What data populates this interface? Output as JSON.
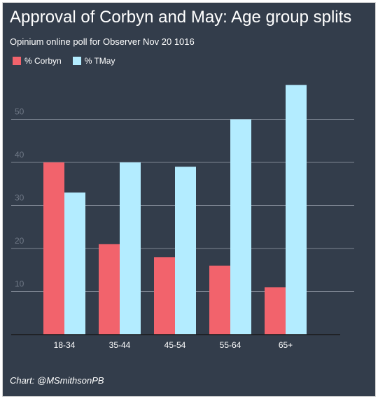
{
  "chart_data": {
    "type": "bar",
    "title": "Approval of Corbyn and May: Age group splits",
    "subtitle": "Opinium online poll for Observer Nov 20 1016",
    "categories": [
      "18-34",
      "35-44",
      "45-54",
      "55-64",
      "65+"
    ],
    "series": [
      {
        "name": "% Corbyn",
        "color": "#f2636c",
        "values": [
          40,
          21,
          18,
          16,
          11
        ]
      },
      {
        "name": "% TMay",
        "color": "#b3ecff",
        "values": [
          33,
          40,
          39,
          50,
          58
        ]
      }
    ],
    "y_ticks": [
      10,
      20,
      30,
      40,
      50
    ],
    "ylim": [
      0,
      60
    ],
    "grid": true,
    "legend_position": "top-left",
    "credit": "Chart: @MSmithsonPB"
  }
}
